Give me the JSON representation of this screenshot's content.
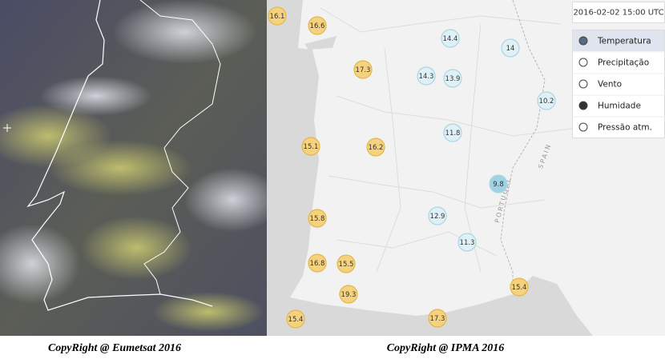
{
  "timestamp": "2016-02-02 15:00 UTC",
  "menu": [
    "Temperatura",
    "Precipitação",
    "Vento",
    "Humidade",
    "Pressão atm."
  ],
  "map_labels": [
    "PORTUGAL",
    "SPAIN"
  ],
  "markers": [
    {
      "label": "16.1",
      "color": "#f5d27e"
    },
    {
      "label": "16.6",
      "color": "#f5d27e"
    },
    {
      "label": "17.3",
      "color": "#f5d27e"
    },
    {
      "label": "14.4",
      "color": "#dff1f6"
    },
    {
      "label": "14",
      "color": "#dff1f6"
    },
    {
      "label": "14.3",
      "color": "#dff1f6"
    },
    {
      "label": "13.9",
      "color": "#dff1f6"
    },
    {
      "label": "10.2",
      "color": "#dff1f6"
    },
    {
      "label": "11.8",
      "color": "#dff1f6"
    },
    {
      "label": "15.1",
      "color": "#f5d27e"
    },
    {
      "label": "16.2",
      "color": "#f5d27e"
    },
    {
      "label": "9.8",
      "color": "#9fd3e3"
    },
    {
      "label": "15.8",
      "color": "#f5d27e"
    },
    {
      "label": "12.9",
      "color": "#dff1f6"
    },
    {
      "label": "11.3",
      "color": "#dff1f6"
    },
    {
      "label": "16.8",
      "color": "#f5d27e"
    },
    {
      "label": "15.5",
      "color": "#f5d27e"
    },
    {
      "label": "19.3",
      "color": "#f5d27e"
    },
    {
      "label": "15.4",
      "color": "#f5d27e"
    },
    {
      "label": "15.4",
      "color": "#f5d27e"
    },
    {
      "label": "17.3",
      "color": "#f5d27e"
    }
  ],
  "captions": [
    "CopyRight @ Eumetsat 2016",
    "CopyRight @ IPMA 2016"
  ]
}
